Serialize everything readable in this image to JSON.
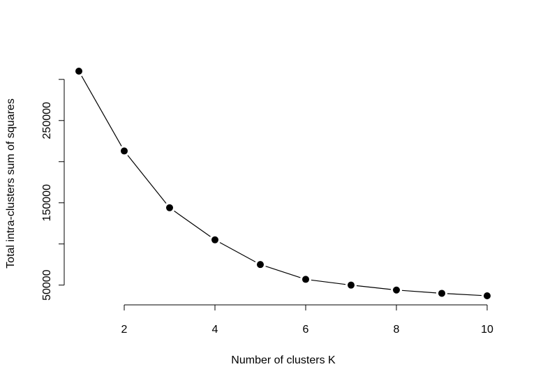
{
  "chart_data": {
    "type": "line",
    "title": "",
    "xlabel": "Number of clusters K",
    "ylabel": "Total intra-clusters sum of squares",
    "x": [
      1,
      2,
      3,
      4,
      5,
      6,
      7,
      8,
      9,
      10
    ],
    "series": [
      {
        "values": [
          310000,
          213000,
          144000,
          105000,
          75000,
          57000,
          50000,
          44000,
          40000,
          37000
        ]
      }
    ],
    "xlim": [
      1,
      10
    ],
    "ylim": [
      37000,
      310000
    ],
    "xticks": [
      2,
      4,
      6,
      8,
      10
    ],
    "xtick_labels": [
      "2",
      "4",
      "6",
      "8",
      "10"
    ],
    "yticks": [
      50000,
      100000,
      150000,
      200000,
      250000,
      300000
    ],
    "ytick_labels": [
      "50000",
      "",
      "150000",
      "",
      "250000",
      ""
    ],
    "grid": false,
    "marker": "filled-circle",
    "colors": {
      "line": "#000000",
      "marker": "#000000",
      "axis": "#000000"
    }
  }
}
